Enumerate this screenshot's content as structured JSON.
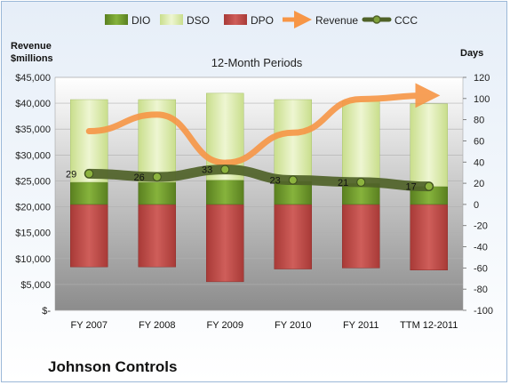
{
  "company": "Johnson Controls",
  "chart_data": {
    "type": "bar",
    "title": "12-Month Periods",
    "left_axis_label_line1": "Revenue",
    "left_axis_label_line2": "$millions",
    "right_axis_label": "Days",
    "categories": [
      "FY 2007",
      "FY 2008",
      "FY 2009",
      "FY 2010",
      "FY 2011",
      "TTM 12-2011"
    ],
    "left_ylim": [
      0,
      45000
    ],
    "left_ticks": [
      0,
      5000,
      10000,
      15000,
      20000,
      25000,
      30000,
      35000,
      40000,
      45000
    ],
    "left_tick_labels": [
      "$-",
      "$5,000",
      "$10,000",
      "$15,000",
      "$20,000",
      "$25,000",
      "$30,000",
      "$35,000",
      "$40,000",
      "$45,000"
    ],
    "right_ylim": [
      -100,
      120
    ],
    "right_ticks": [
      -100,
      -80,
      -60,
      -40,
      -20,
      0,
      20,
      40,
      60,
      80,
      100,
      120
    ],
    "right_tick_labels": [
      "-100",
      "-80",
      "-60",
      "-40",
      "-20",
      "0",
      "20",
      "40",
      "60",
      "80",
      "100",
      "120"
    ],
    "legend": [
      "DIO",
      "DSO",
      "DPO",
      "Revenue",
      "CCC"
    ],
    "legend_placement": "top",
    "colors": {
      "DIO": "#6f9a2c",
      "DSO": "#d8e9a8",
      "DPO": "#c0504d",
      "Revenue": "#f79646",
      "CCC": "#4f6228"
    },
    "series": [
      {
        "name": "DIO",
        "axis": "right",
        "values": [
          21,
          21,
          23,
          22,
          20,
          17
        ]
      },
      {
        "name": "DSO",
        "axis": "right",
        "values": [
          78,
          78,
          82,
          77,
          78,
          78
        ]
      },
      {
        "name": "DPO",
        "axis": "right",
        "values": [
          -59,
          -59,
          -73,
          -61,
          -60,
          -62
        ]
      },
      {
        "name": "CCC",
        "axis": "right",
        "values": [
          29,
          26,
          33,
          23,
          21,
          17
        ]
      },
      {
        "name": "Revenue",
        "axis": "left",
        "values": [
          34600,
          37800,
          28500,
          34300,
          40800,
          41500
        ]
      }
    ],
    "ccc_labels": [
      "29",
      "26",
      "33",
      "23",
      "21",
      "17"
    ],
    "grid": true
  }
}
